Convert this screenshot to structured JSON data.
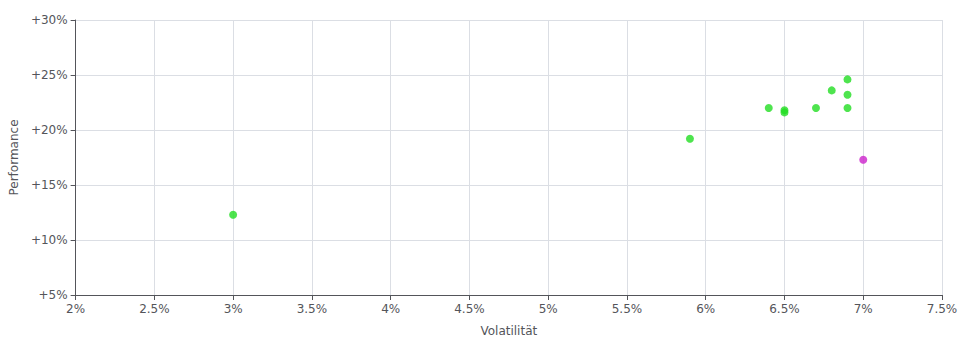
{
  "chart_data": {
    "type": "scatter",
    "xlabel": "Volatilität",
    "ylabel": "Performance",
    "xlim": [
      0.02,
      0.075
    ],
    "ylim": [
      0.05,
      0.3
    ],
    "xticks": [
      {
        "value": 0.02,
        "label": "2%"
      },
      {
        "value": 0.025,
        "label": "2.5%"
      },
      {
        "value": 0.03,
        "label": "3%"
      },
      {
        "value": 0.035,
        "label": "3.5%"
      },
      {
        "value": 0.04,
        "label": "4%"
      },
      {
        "value": 0.045,
        "label": "4.5%"
      },
      {
        "value": 0.05,
        "label": "5%"
      },
      {
        "value": 0.055,
        "label": "5.5%"
      },
      {
        "value": 0.06,
        "label": "6%"
      },
      {
        "value": 0.065,
        "label": "6.5%"
      },
      {
        "value": 0.07,
        "label": "7%"
      },
      {
        "value": 0.075,
        "label": "7.5%"
      }
    ],
    "yticks": [
      {
        "value": 0.05,
        "label": "+5%"
      },
      {
        "value": 0.1,
        "label": "+10%"
      },
      {
        "value": 0.15,
        "label": "+15%"
      },
      {
        "value": 0.2,
        "label": "+20%"
      },
      {
        "value": 0.25,
        "label": "+25%"
      },
      {
        "value": 0.3,
        "label": "+30%"
      }
    ],
    "grid": true,
    "series": [
      {
        "color": "#22dd22",
        "x": [
          0.03,
          0.059,
          0.064,
          0.065,
          0.065,
          0.067,
          0.068,
          0.069,
          0.069,
          0.069
        ],
        "values": [
          0.123,
          0.192,
          0.22,
          0.218,
          0.216,
          0.22,
          0.236,
          0.246,
          0.232,
          0.22
        ]
      },
      {
        "color": "#cc22cc",
        "x": [
          0.07
        ],
        "values": [
          0.173
        ]
      }
    ]
  }
}
